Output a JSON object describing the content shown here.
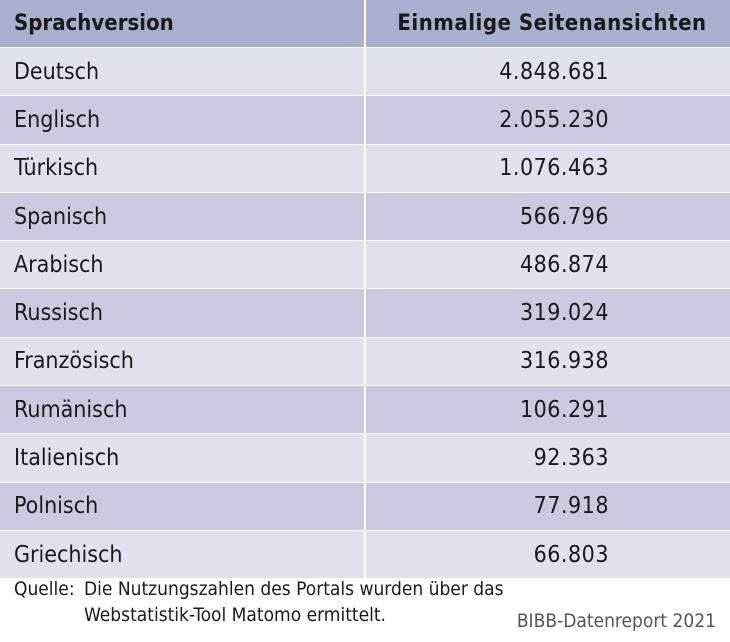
{
  "table": {
    "headers": {
      "language": "Sprachversion",
      "views": "Einmalige Seitenansichten"
    },
    "rows": [
      {
        "language": "Deutsch",
        "views": "4.848.681"
      },
      {
        "language": "Englisch",
        "views": "2.055.230"
      },
      {
        "language": "Türkisch",
        "views": "1.076.463"
      },
      {
        "language": "Spanisch",
        "views": "566.796"
      },
      {
        "language": "Arabisch",
        "views": "486.874"
      },
      {
        "language": "Russisch",
        "views": "319.024"
      },
      {
        "language": "Französisch",
        "views": "316.938"
      },
      {
        "language": "Rumänisch",
        "views": "106.291"
      },
      {
        "language": "Italienisch",
        "views": "92.363"
      },
      {
        "language": "Polnisch",
        "views": "77.918"
      },
      {
        "language": "Griechisch",
        "views": "66.803"
      }
    ]
  },
  "footer": {
    "source_label": "Quelle:",
    "source_text": "Die Nutzungszahlen des Portals wurden über das Webstatistik-Tool Matomo ermittelt.",
    "credit": "BIBB-Datenreport 2021"
  },
  "colors": {
    "header_bg": "#a9afcf",
    "band_light": "#dfe1ec",
    "band_dark": "#c8cbe0"
  }
}
